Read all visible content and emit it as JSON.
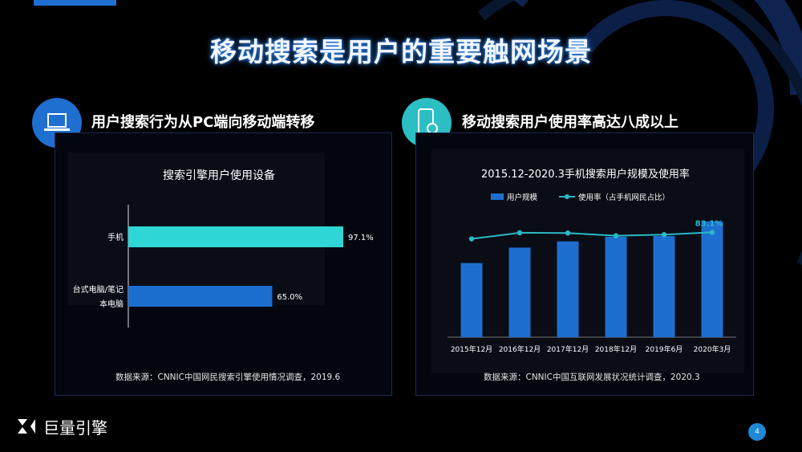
{
  "title": "移动搜索是用户的重要触网场景",
  "left": {
    "heading": "用户搜索行为从PC端向移动端转移",
    "chart_title": "搜索引擎用户使用设备",
    "source": "数据来源：CNNIC中国网民搜索引擎使用情况调查，2019.6"
  },
  "right": {
    "heading": "移动搜索用户使用率高达八成以上",
    "chart_title": "2015.12-2020.3手机搜索用户规模及使用率",
    "source": "数据来源：CNNIC中国互联网发展状况统计调查，2020.3"
  },
  "brand_name": "巨量引擎",
  "page_number": "4",
  "colors": {
    "accent_blue": "#1f6fd1",
    "cyan": "#2fd6d6",
    "bar_blue": "#1c6fcf",
    "line_cyan": "#2bb8c8"
  },
  "icons": {
    "left": "laptop-icon",
    "right": "mobile-search-icon"
  },
  "chart_data": [
    {
      "type": "bar",
      "orientation": "horizontal",
      "title": "搜索引擎用户使用设备",
      "categories": [
        "手机",
        "台式电脑/笔记本电脑"
      ],
      "category_lines": [
        [
          "手机"
        ],
        [
          "台式电脑/笔记",
          "本电脑"
        ]
      ],
      "values": [
        97.1,
        65.0
      ],
      "labels": [
        "97.1%",
        "65.0%"
      ],
      "xlim": [
        0,
        100
      ]
    },
    {
      "type": "bar",
      "title": "2015.12-2020.3手机搜索用户规模及使用率",
      "categories": [
        "2015年12月",
        "2016年12月",
        "2017年12月",
        "2018年12月",
        "2019年6月",
        "2020年3月"
      ],
      "series": [
        {
          "name": "用户规模",
          "type": "bar",
          "values": [
            48,
            58,
            62,
            65,
            65.5,
            75
          ]
        },
        {
          "name": "使用率（占手机网民占比）",
          "type": "line",
          "values": [
            77.1,
            82.7,
            82.5,
            80.0,
            81.0,
            83.1
          ]
        }
      ],
      "annotation": "83.1%",
      "legend_position": "top"
    }
  ]
}
